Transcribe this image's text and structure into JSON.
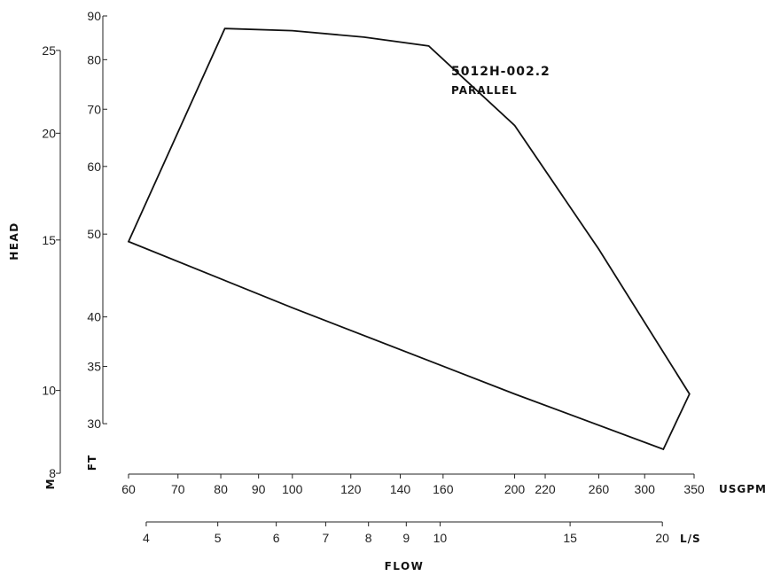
{
  "chart_data": {
    "type": "line",
    "title": "5012H-002.2",
    "subtitle": "PARALLEL",
    "x_scale": "log",
    "y_scale": "log",
    "xlabel": "FLOW",
    "ylabel": "HEAD",
    "x_primary_unit": "USGPM",
    "x_secondary_unit": "L/S",
    "y_primary_unit": "FT",
    "y_secondary_unit": "M",
    "x_primary_ticks": [
      60,
      70,
      80,
      90,
      100,
      120,
      140,
      160,
      200,
      220,
      260,
      300,
      350
    ],
    "x_secondary_ticks": [
      4,
      5,
      6,
      7,
      8,
      9,
      10,
      15,
      20
    ],
    "y_primary_ticks": [
      30,
      35,
      40,
      50,
      60,
      70,
      80,
      90
    ],
    "y_secondary_ticks": [
      8,
      10,
      15,
      20,
      25
    ],
    "xlim": [
      60,
      350
    ],
    "ylim": [
      28,
      90
    ],
    "series": [
      {
        "x": [
          60,
          81,
          100,
          125,
          153,
          200,
          260,
          345,
          318,
          200,
          100,
          60
        ],
        "y": [
          49,
          87,
          86.5,
          85,
          83,
          67,
          48,
          32.5,
          28,
          32.5,
          41,
          49
        ]
      }
    ]
  }
}
